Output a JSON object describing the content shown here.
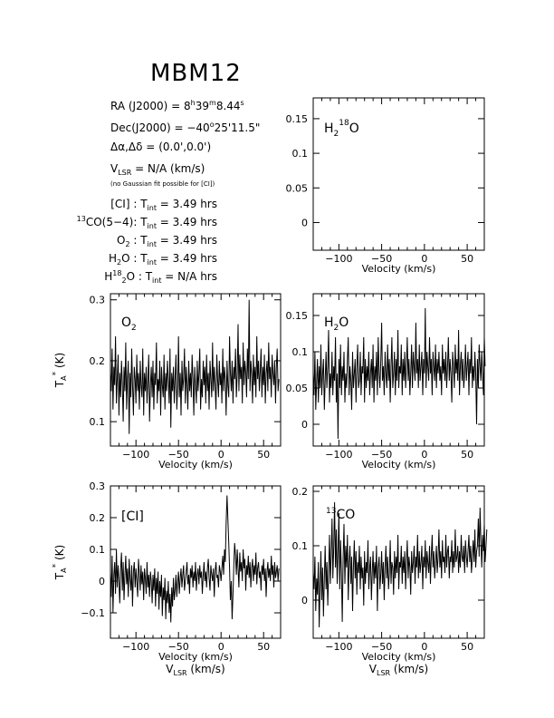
{
  "title": "MBM12",
  "info": {
    "ra_label": "RA (J2000) =",
    "ra_h": "8",
    "ra_h_unit": "h",
    "ra_m": "39",
    "ra_m_unit": "m",
    "ra_s": "8.44",
    "ra_s_unit": "s",
    "dec_label": "Dec(J2000) =",
    "dec_d": "−40",
    "dec_d_unit": "o",
    "dec_rest": "25'11.5\"",
    "offset_label": "Δα,Δδ =",
    "offset_value": "(0.0',0.0')",
    "vlsr_label": "V",
    "vlsr_sub": "LSR",
    "vlsr_value": "= N/A  (km/s)",
    "note": "(no Gaussian fit possible for [CI])",
    "tint": [
      {
        "pre": "",
        "sup": "",
        "name": "[CI]",
        "sub": "",
        "post": " : ",
        "t": "T",
        "t_sub": "int",
        "value": "= 3.49 hrs"
      },
      {
        "pre": "",
        "sup": "13",
        "name": "CO(5−4):",
        "sub": "",
        "post": " ",
        "t": "T",
        "t_sub": "int",
        "value": "= 3.49 hrs"
      },
      {
        "pre": "",
        "sup": "",
        "name": "O",
        "sub": "2",
        "post": " : ",
        "t": "T",
        "t_sub": "int",
        "value": "= 3.49 hrs"
      },
      {
        "pre": "",
        "sup": "",
        "name": "H",
        "sub": "2",
        "post": "O : ",
        "t": "T",
        "t_sub": "int",
        "value": "= 3.49 hrs"
      },
      {
        "pre": "H",
        "sup": "18",
        "name": "O",
        "sub": "2",
        "post": " : ",
        "t": "T",
        "t_sub": "int",
        "value": "= N/A hrs"
      }
    ]
  },
  "axis_text": {
    "xlabel": "Velocity (km/s)",
    "vlsr_main": "V",
    "vlsr_sub": "LSR",
    "vlsr_tail": " (km/s)",
    "ylabel_main": "T",
    "ylabel_sub": "A",
    "ylabel_sup": "*",
    "ylabel_tail": " (K)"
  },
  "chart_data": [
    {
      "id": "h218o",
      "type": "line",
      "label": {
        "main": "H",
        "sub": "2",
        "sup": "18",
        "tail": "O"
      },
      "xlim": [
        -130,
        70
      ],
      "ylim": [
        -0.04,
        0.18
      ],
      "xticks": [
        -100,
        -50,
        0,
        50
      ],
      "yticks": [
        0,
        0.05,
        0.1,
        0.15
      ],
      "ytick_labels": [
        "0",
        "0.05",
        "0.1",
        "0.15"
      ],
      "data": "none"
    },
    {
      "id": "o2",
      "type": "line",
      "label": {
        "main": "O",
        "sub": "2",
        "sup": "",
        "tail": ""
      },
      "xlim": [
        -130,
        70
      ],
      "ylim": [
        0.06,
        0.31
      ],
      "xticks": [
        -100,
        -50,
        0,
        50
      ],
      "yticks": [
        0.1,
        0.2,
        0.3
      ],
      "ytick_labels": [
        "0.1",
        "0.2",
        "0.3"
      ],
      "x_start": -130,
      "x_step": 1.0,
      "y": [
        0.18,
        0.15,
        0.22,
        0.12,
        0.19,
        0.16,
        0.24,
        0.13,
        0.17,
        0.21,
        0.11,
        0.18,
        0.14,
        0.2,
        0.16,
        0.1,
        0.19,
        0.15,
        0.23,
        0.12,
        0.17,
        0.2,
        0.08,
        0.18,
        0.14,
        0.22,
        0.16,
        0.11,
        0.19,
        0.17,
        0.13,
        0.21,
        0.15,
        0.18,
        0.12,
        0.2,
        0.16,
        0.14,
        0.22,
        0.11,
        0.18,
        0.15,
        0.19,
        0.13,
        0.17,
        0.21,
        0.1,
        0.16,
        0.19,
        0.14,
        0.2,
        0.12,
        0.18,
        0.16,
        0.23,
        0.13,
        0.17,
        0.15,
        0.2,
        0.11,
        0.19,
        0.16,
        0.14,
        0.21,
        0.12,
        0.18,
        0.15,
        0.2,
        0.17,
        0.13,
        0.22,
        0.09,
        0.18,
        0.15,
        0.19,
        0.13,
        0.17,
        0.21,
        0.12,
        0.16,
        0.24,
        0.14,
        0.18,
        0.11,
        0.2,
        0.15,
        0.17,
        0.22,
        0.13,
        0.19,
        0.16,
        0.12,
        0.2,
        0.15,
        0.18,
        0.14,
        0.21,
        0.17,
        0.11,
        0.19,
        0.16,
        0.13,
        0.2,
        0.15,
        0.18,
        0.22,
        0.12,
        0.17,
        0.14,
        0.2,
        0.16,
        0.19,
        0.13,
        0.21,
        0.15,
        0.18,
        0.12,
        0.2,
        0.17,
        0.14,
        0.23,
        0.15,
        0.19,
        0.16,
        0.12,
        0.21,
        0.17,
        0.14,
        0.2,
        0.16,
        0.18,
        0.13,
        0.22,
        0.15,
        0.19,
        0.17,
        0.11,
        0.2,
        0.16,
        0.14,
        0.24,
        0.18,
        0.15,
        0.2,
        0.13,
        0.19,
        0.17,
        0.22,
        0.14,
        0.18,
        0.26,
        0.15,
        0.21,
        0.17,
        0.19,
        0.13,
        0.23,
        0.16,
        0.2,
        0.18,
        0.14,
        0.22,
        0.17,
        0.3,
        0.15,
        0.2,
        0.18,
        0.13,
        0.21,
        0.16,
        0.19,
        0.14,
        0.24,
        0.17,
        0.2,
        0.15,
        0.18,
        0.22,
        0.14,
        0.19,
        0.16,
        0.21,
        0.13,
        0.18,
        0.2,
        0.15,
        0.23,
        0.17,
        0.19,
        0.14,
        0.21,
        0.18,
        0.16,
        0.2,
        0.13,
        0.19,
        0.22,
        0.15,
        0.17
      ]
    },
    {
      "id": "h2o",
      "type": "line",
      "label": {
        "main": "H",
        "sub": "2",
        "sup": "",
        "tail": "O"
      },
      "xlim": [
        -130,
        70
      ],
      "ylim": [
        -0.03,
        0.18
      ],
      "xticks": [
        -100,
        -50,
        0,
        50
      ],
      "yticks": [
        0,
        0.05,
        0.1,
        0.15
      ],
      "ytick_labels": [
        "0",
        "0.05",
        "0.1",
        "0.15"
      ],
      "x_start": -130,
      "x_step": 1.0,
      "y": [
        0.07,
        0.04,
        0.1,
        0.02,
        0.06,
        0.09,
        0.03,
        0.08,
        0.05,
        0.11,
        0.04,
        0.07,
        0.09,
        0.02,
        0.06,
        0.1,
        0.05,
        0.08,
        0.13,
        0.03,
        0.07,
        0.05,
        0.1,
        0.04,
        0.08,
        0.06,
        0.12,
        0.03,
        0.07,
        -0.02,
        0.09,
        0.05,
        0.11,
        0.04,
        0.08,
        0.06,
        0.1,
        0.03,
        0.07,
        0.05,
        0.09,
        0.12,
        0.04,
        0.08,
        0.06,
        0.02,
        0.1,
        0.05,
        0.07,
        0.09,
        0.03,
        0.08,
        0.11,
        0.05,
        0.06,
        0.1,
        0.04,
        0.08,
        0.07,
        0.12,
        0.03,
        0.09,
        0.05,
        0.08,
        0.06,
        0.1,
        0.04,
        0.07,
        0.09,
        0.05,
        0.11,
        0.03,
        0.08,
        0.06,
        0.1,
        0.04,
        0.12,
        0.07,
        0.05,
        0.09,
        0.14,
        0.06,
        0.08,
        0.04,
        0.1,
        0.07,
        0.05,
        0.11,
        0.06,
        0.09,
        0.03,
        0.08,
        0.12,
        0.05,
        0.07,
        0.1,
        0.04,
        0.09,
        0.06,
        0.13,
        0.05,
        0.08,
        0.07,
        0.11,
        0.04,
        0.09,
        0.06,
        0.1,
        0.05,
        0.08,
        0.12,
        0.06,
        0.09,
        0.04,
        0.07,
        0.11,
        0.05,
        0.1,
        0.08,
        0.06,
        0.14,
        0.07,
        0.09,
        0.05,
        0.11,
        0.06,
        0.08,
        0.1,
        0.04,
        0.09,
        0.07,
        0.16,
        0.05,
        0.1,
        0.08,
        0.06,
        0.12,
        0.07,
        0.09,
        0.04,
        0.1,
        0.08,
        0.06,
        0.11,
        0.05,
        0.09,
        0.07,
        0.1,
        0.06,
        0.08,
        0.04,
        0.11,
        0.07,
        0.09,
        0.06,
        0.1,
        0.05,
        0.08,
        0.12,
        0.06,
        0.09,
        0.07,
        0.03,
        0.1,
        0.08,
        0.05,
        0.11,
        0.07,
        0.09,
        0.06,
        0.13,
        0.04,
        0.08,
        0.1,
        0.06,
        0.09,
        0.05,
        0.07,
        0.11,
        0.06,
        0.08,
        0.1,
        0.04,
        0.09,
        0.07,
        0.12,
        0.05,
        0.08,
        0.06,
        0.1,
        0.07,
        0.0,
        0.09,
        0.05,
        0.11,
        0.08,
        0.06,
        0.1,
        0.07,
        0.04,
        0.12,
        0.08
      ]
    },
    {
      "id": "ci",
      "type": "line",
      "label": {
        "main": "[CI]",
        "sub": "",
        "sup": "",
        "tail": ""
      },
      "xlim": [
        -130,
        70
      ],
      "ylim": [
        -0.18,
        0.3
      ],
      "xticks": [
        -100,
        -50,
        0,
        50
      ],
      "yticks": [
        -0.1,
        0,
        0.1,
        0.2,
        0.3
      ],
      "ytick_labels": [
        "−0.1",
        "0",
        "0.1",
        "0.2",
        "0.3"
      ],
      "x_start": -130,
      "x_step": 1.0,
      "y": [
        0.03,
        -0.05,
        0.08,
        -0.1,
        0.02,
        0.06,
        -0.04,
        0.1,
        -0.02,
        0.05,
        0.0,
        -0.07,
        0.04,
        0.09,
        -0.03,
        0.06,
        -0.06,
        0.02,
        0.08,
        -0.01,
        0.04,
        -0.05,
        0.07,
        0.01,
        -0.03,
        0.05,
        -0.08,
        0.03,
        0.06,
        -0.02,
        0.04,
        0.0,
        -0.05,
        0.07,
        0.02,
        -0.03,
        0.05,
        -0.01,
        0.03,
        -0.06,
        0.04,
        0.01,
        -0.04,
        0.06,
        -0.02,
        0.02,
        -0.05,
        0.03,
        0.0,
        -0.07,
        0.02,
        -0.03,
        0.04,
        -0.08,
        0.01,
        -0.04,
        0.03,
        -0.09,
        0.0,
        -0.05,
        0.02,
        -0.11,
        -0.02,
        -0.06,
        0.01,
        -0.12,
        -0.03,
        -0.07,
        0.0,
        -0.1,
        -0.04,
        -0.13,
        -0.02,
        -0.08,
        0.01,
        -0.06,
        -0.03,
        0.02,
        -0.05,
        0.0,
        0.03,
        -0.04,
        0.01,
        0.04,
        -0.02,
        0.02,
        0.05,
        -0.03,
        0.0,
        0.03,
        0.06,
        -0.01,
        0.02,
        -0.04,
        0.04,
        0.01,
        0.05,
        -0.02,
        0.03,
        0.0,
        0.06,
        -0.03,
        0.02,
        0.04,
        -0.01,
        0.05,
        0.01,
        0.03,
        -0.04,
        0.02,
        0.06,
        0.0,
        0.03,
        -0.02,
        0.04,
        0.07,
        0.01,
        -0.03,
        0.05,
        0.02,
        0.0,
        0.04,
        -0.05,
        0.03,
        0.06,
        0.01,
        0.02,
        -0.02,
        0.05,
        0.03,
        0.0,
        0.04,
        0.08,
        0.02,
        0.1,
        0.06,
        0.18,
        0.27,
        0.2,
        0.12,
        0.04,
        -0.06,
        0.0,
        -0.12,
        -0.04,
        0.05,
        0.12,
        0.08,
        0.02,
        0.1,
        0.04,
        -0.02,
        0.09,
        0.03,
        0.06,
        0.0,
        0.1,
        0.04,
        0.07,
        -0.03,
        0.05,
        0.02,
        0.08,
        0.01,
        0.06,
        -0.02,
        0.04,
        0.07,
        0.0,
        0.05,
        0.02,
        0.09,
        -0.01,
        0.04,
        0.06,
        0.01,
        0.03,
        -0.03,
        0.05,
        0.02,
        0.07,
        0.0,
        0.04,
        -0.05,
        0.03,
        0.06,
        0.01,
        0.04,
        0.0,
        0.08,
        0.02,
        0.05,
        -0.02,
        0.06,
        0.01,
        0.03,
        0.05,
        0.0,
        0.04
      ]
    },
    {
      "id": "13co",
      "type": "line",
      "label": {
        "main": "CO",
        "sub": "",
        "sup": "13",
        "tail": ""
      },
      "xlim": [
        -130,
        70
      ],
      "ylim": [
        -0.07,
        0.21
      ],
      "xticks": [
        -100,
        -50,
        0,
        50
      ],
      "yticks": [
        0,
        0.1,
        0.2
      ],
      "ytick_labels": [
        "0",
        "0.1",
        "0.2"
      ],
      "x_start": -130,
      "x_step": 1.0,
      "y": [
        0.05,
        0.02,
        0.08,
        -0.02,
        0.04,
        0.01,
        0.07,
        -0.05,
        0.03,
        0.09,
        0.0,
        0.06,
        -0.03,
        0.04,
        0.1,
        0.02,
        0.07,
        -0.01,
        0.05,
        0.12,
        0.03,
        0.08,
        0.15,
        0.04,
        0.1,
        0.18,
        0.06,
        0.13,
        0.03,
        0.09,
        0.16,
        0.02,
        0.11,
        0.05,
        -0.04,
        0.08,
        0.14,
        0.03,
        0.1,
        0.06,
        0.12,
        0.0,
        0.07,
        0.1,
        0.03,
        0.08,
        -0.02,
        0.06,
        0.11,
        0.04,
        0.09,
        0.01,
        0.07,
        0.05,
        0.1,
        0.02,
        0.08,
        0.04,
        0.06,
        -0.01,
        0.09,
        0.03,
        0.07,
        0.05,
        0.11,
        0.02,
        0.06,
        0.08,
        0.0,
        0.05,
        0.09,
        0.03,
        0.07,
        0.04,
        0.1,
        -0.02,
        0.06,
        0.08,
        0.02,
        0.05,
        0.09,
        0.03,
        0.07,
        0.0,
        0.06,
        0.1,
        0.04,
        0.08,
        0.02,
        0.05,
        0.11,
        0.03,
        0.07,
        0.06,
        0.01,
        0.09,
        0.04,
        0.08,
        0.05,
        0.12,
        0.02,
        0.07,
        0.06,
        0.1,
        0.03,
        0.08,
        0.05,
        0.09,
        0.02,
        0.07,
        0.11,
        0.04,
        0.08,
        0.06,
        0.01,
        0.09,
        0.05,
        0.07,
        0.1,
        0.03,
        0.08,
        0.06,
        0.12,
        0.04,
        0.09,
        0.05,
        0.07,
        0.1,
        0.02,
        0.08,
        0.06,
        0.11,
        0.04,
        0.09,
        0.07,
        0.05,
        0.1,
        0.03,
        0.08,
        0.12,
        0.06,
        0.09,
        0.04,
        0.07,
        0.1,
        0.05,
        0.08,
        0.13,
        0.06,
        0.09,
        0.04,
        0.11,
        0.07,
        0.08,
        0.05,
        0.12,
        0.06,
        0.09,
        0.1,
        0.04,
        0.08,
        0.07,
        0.11,
        0.05,
        0.09,
        0.06,
        0.13,
        0.07,
        0.08,
        0.1,
        0.05,
        0.09,
        0.06,
        0.12,
        0.08,
        0.07,
        0.1,
        0.05,
        0.11,
        0.08,
        0.06,
        0.09,
        0.12,
        0.07,
        0.1,
        0.05,
        0.08,
        0.11,
        0.07,
        0.13,
        0.06,
        0.09,
        0.1,
        0.15,
        0.08,
        0.17,
        0.11,
        0.06,
        0.12,
        0.09,
        0.14,
        0.07,
        0.1,
        0.13
      ]
    }
  ]
}
